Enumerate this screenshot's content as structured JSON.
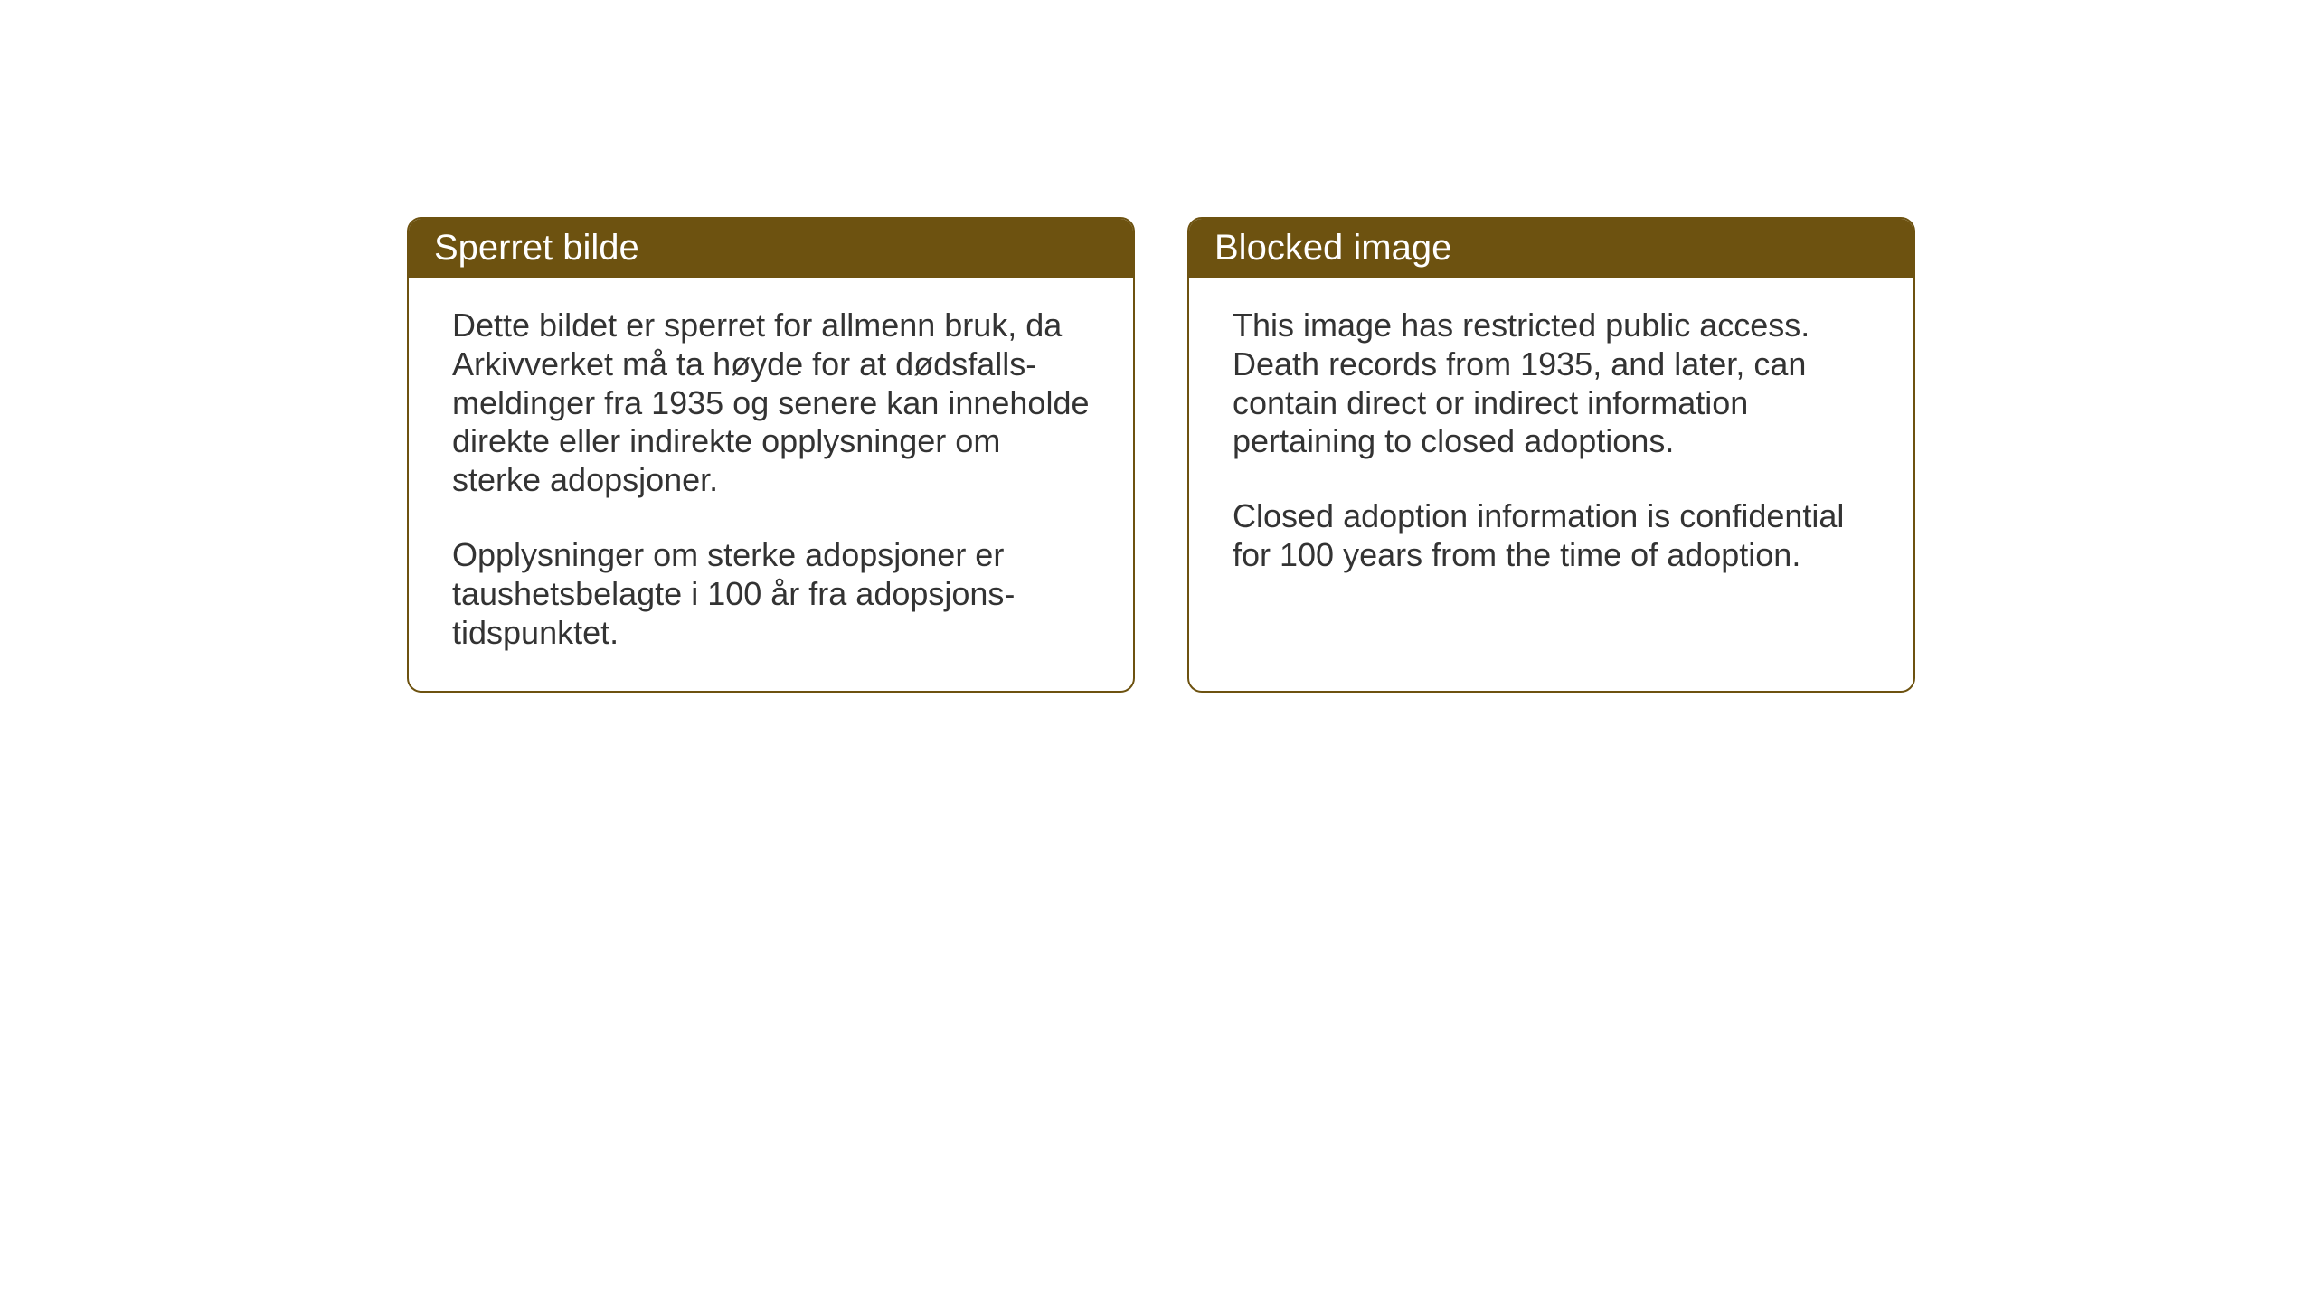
{
  "cards": {
    "norwegian": {
      "title": "Sperret bilde",
      "paragraph1": "Dette bildet er sperret for allmenn bruk, da Arkivverket må ta høyde for at dødsfalls-meldinger fra 1935 og senere kan inneholde direkte eller indirekte opplysninger om sterke adopsjoner.",
      "paragraph2": "Opplysninger om sterke adopsjoner er taushetsbelagte i 100 år fra adopsjons-tidspunktet."
    },
    "english": {
      "title": "Blocked image",
      "paragraph1": "This image has restricted public access. Death records from 1935, and later, can contain direct or indirect information pertaining to closed adoptions.",
      "paragraph2": "Closed adoption information is confidential for 100 years from the time of adoption."
    }
  },
  "styling": {
    "header_background": "#6d5210",
    "header_text_color": "#ffffff",
    "border_color": "#6d5210",
    "body_text_color": "#333333",
    "page_background": "#ffffff",
    "title_fontsize": 40,
    "body_fontsize": 36,
    "border_radius": 16,
    "border_width": 2
  }
}
